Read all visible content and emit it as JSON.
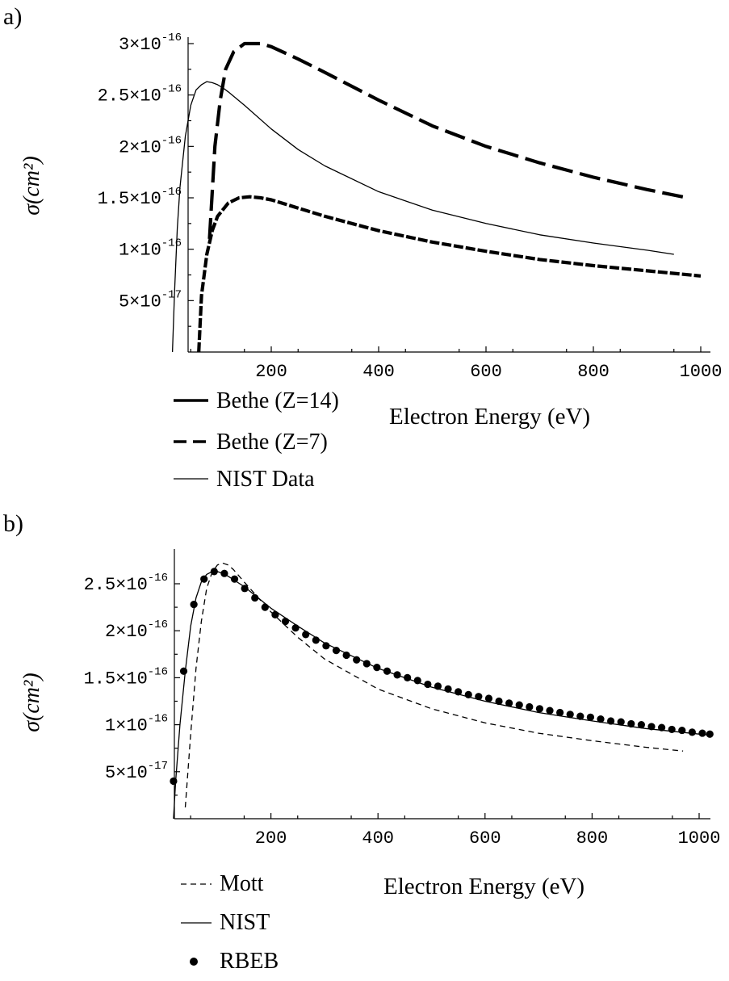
{
  "chart_data": [
    {
      "panel": "a)",
      "type": "line",
      "xlabel": "Electron Energy (eV)",
      "ylabel": "σ(cm²)",
      "xlim": [
        0,
        1000
      ],
      "ylim": [
        0,
        3.1e-16
      ],
      "x_ticks": [
        "200",
        "400",
        "600",
        "800",
        "1000"
      ],
      "x_tick_values": [
        200,
        400,
        600,
        800,
        1000
      ],
      "y_ticks": [
        {
          "value": 5e-17,
          "mant": "5×10",
          "exp": "-17"
        },
        {
          "value": 1e-16,
          "mant": "1×10",
          "exp": "-16"
        },
        {
          "value": 1.5e-16,
          "mant": "1.5×10",
          "exp": "-16"
        },
        {
          "value": 2e-16,
          "mant": "2×10",
          "exp": "-16"
        },
        {
          "value": 2.5e-16,
          "mant": "2.5×10",
          "exp": "-16"
        },
        {
          "value": 3e-16,
          "mant": "3×10",
          "exp": "-16"
        }
      ],
      "series": [
        {
          "name": "Bethe (Z=14)",
          "style": "thick-dash-short",
          "x": [
            65,
            70,
            80,
            90,
            100,
            120,
            140,
            160,
            180,
            200,
            250,
            300,
            400,
            500,
            600,
            700,
            800,
            900,
            1000
          ],
          "y": [
            0,
            5.5e-17,
            9.5e-17,
            1.18e-16,
            1.32e-16,
            1.45e-16,
            1.5e-16,
            1.51e-16,
            1.5e-16,
            1.48e-16,
            1.4e-16,
            1.32e-16,
            1.18e-16,
            1.07e-16,
            9.8e-17,
            9e-17,
            8.4e-17,
            7.9e-17,
            7.4e-17
          ]
        },
        {
          "name": "Bethe (Z=7)",
          "style": "thick-dash-long",
          "x": [
            85,
            95,
            105,
            115,
            130,
            150,
            180,
            200,
            250,
            300,
            400,
            500,
            600,
            700,
            800,
            900,
            975
          ],
          "y": [
            1.1e-16,
            2e-16,
            2.45e-16,
            2.75e-16,
            2.92e-16,
            3e-16,
            3e-16,
            2.97e-16,
            2.85e-16,
            2.72e-16,
            2.45e-16,
            2.2e-16,
            2e-16,
            1.84e-16,
            1.7e-16,
            1.58e-16,
            1.5e-16
          ]
        },
        {
          "name": "NIST Data",
          "style": "thin-solid",
          "x": [
            16,
            20,
            25,
            30,
            40,
            50,
            60,
            70,
            80,
            90,
            100,
            110,
            120,
            150,
            200,
            250,
            300,
            400,
            500,
            600,
            700,
            800,
            900,
            950
          ],
          "y": [
            0,
            6e-17,
            1.2e-16,
            1.6e-16,
            2.1e-16,
            2.4e-16,
            2.55e-16,
            2.6e-16,
            2.63e-16,
            2.62e-16,
            2.6e-16,
            2.57e-16,
            2.53e-16,
            2.4e-16,
            2.17e-16,
            1.97e-16,
            1.81e-16,
            1.56e-16,
            1.38e-16,
            1.25e-16,
            1.14e-16,
            1.06e-16,
            9.9e-17,
            9.5e-17
          ]
        }
      ],
      "legend": [
        "Bethe (Z=14)",
        "Bethe (Z=7)",
        "NIST Data"
      ]
    },
    {
      "panel": "b)",
      "type": "line",
      "xlabel": "Electron Energy (eV)",
      "ylabel": "σ(cm²)",
      "xlim": [
        0,
        1000
      ],
      "ylim": [
        0,
        2.75e-16
      ],
      "x_ticks": [
        "200",
        "400",
        "600",
        "800",
        "1000"
      ],
      "x_tick_values": [
        200,
        400,
        600,
        800,
        1000
      ],
      "y_ticks": [
        {
          "value": 5e-17,
          "mant": "5×10",
          "exp": "-17"
        },
        {
          "value": 1e-16,
          "mant": "1×10",
          "exp": "-16"
        },
        {
          "value": 1.5e-16,
          "mant": "1.5×10",
          "exp": "-16"
        },
        {
          "value": 2e-16,
          "mant": "2×10",
          "exp": "-16"
        },
        {
          "value": 2.5e-16,
          "mant": "2.5×10",
          "exp": "-16"
        }
      ],
      "series": [
        {
          "name": "Mott",
          "style": "thin-dash",
          "x": [
            40,
            50,
            60,
            70,
            80,
            90,
            100,
            110,
            120,
            130,
            150,
            200,
            250,
            300,
            400,
            500,
            600,
            700,
            800,
            900,
            970
          ],
          "y": [
            1.2e-17,
            9e-17,
            1.6e-16,
            2.1e-16,
            2.45e-16,
            2.62e-16,
            2.7e-16,
            2.72e-16,
            2.7e-16,
            2.65e-16,
            2.52e-16,
            2.2e-16,
            1.93e-16,
            1.7e-16,
            1.38e-16,
            1.17e-16,
            1.02e-16,
            9.1e-17,
            8.3e-17,
            7.6e-17,
            7.2e-17
          ]
        },
        {
          "name": "NIST",
          "style": "thin-solid",
          "x": [
            18,
            22,
            30,
            40,
            50,
            60,
            70,
            80,
            90,
            100,
            110,
            120,
            150,
            200,
            250,
            300,
            400,
            500,
            600,
            700,
            800,
            900,
            1000,
            1020
          ],
          "y": [
            0,
            4e-17,
            1e-16,
            1.57e-16,
            2.05e-16,
            2.35e-16,
            2.52e-16,
            2.6e-16,
            2.63e-16,
            2.63e-16,
            2.61e-16,
            2.58e-16,
            2.47e-16,
            2.24e-16,
            2.05e-16,
            1.87e-16,
            1.6e-16,
            1.4e-16,
            1.25e-16,
            1.13e-16,
            1.04e-16,
            9.6e-17,
            9e-17,
            8.9e-17
          ]
        },
        {
          "name": "RBEB",
          "style": "markers",
          "x": [
            18,
            37,
            56,
            75,
            94,
            113,
            132,
            151,
            170,
            189,
            208,
            227,
            246,
            265,
            284,
            303,
            322,
            341,
            360,
            379,
            398,
            417,
            436,
            455,
            474,
            493,
            512,
            531,
            550,
            569,
            588,
            607,
            626,
            645,
            664,
            683,
            702,
            721,
            740,
            759,
            778,
            797,
            816,
            835,
            854,
            873,
            892,
            911,
            930,
            949,
            968,
            987,
            1006,
            1020
          ],
          "y": [
            4e-17,
            1.57e-16,
            2.28e-16,
            2.55e-16,
            2.63e-16,
            2.61e-16,
            2.55e-16,
            2.45e-16,
            2.35e-16,
            2.25e-16,
            2.17e-16,
            2.1e-16,
            2.03e-16,
            1.96e-16,
            1.9e-16,
            1.84e-16,
            1.79e-16,
            1.74e-16,
            1.69e-16,
            1.65e-16,
            1.61e-16,
            1.57e-16,
            1.53e-16,
            1.5e-16,
            1.47e-16,
            1.43e-16,
            1.41e-16,
            1.38e-16,
            1.35e-16,
            1.32e-16,
            1.3e-16,
            1.28e-16,
            1.25e-16,
            1.23e-16,
            1.21e-16,
            1.19e-16,
            1.17e-16,
            1.15e-16,
            1.13e-16,
            1.11e-16,
            1.09e-16,
            1.08e-16,
            1.06e-16,
            1.04e-16,
            1.03e-16,
            1.01e-16,
            1e-16,
            9.8e-17,
            9.7e-17,
            9.5e-17,
            9.4e-17,
            9.2e-17,
            9.1e-17,
            9e-17
          ]
        }
      ],
      "legend": [
        "Mott",
        "NIST",
        "RBEB"
      ]
    }
  ]
}
